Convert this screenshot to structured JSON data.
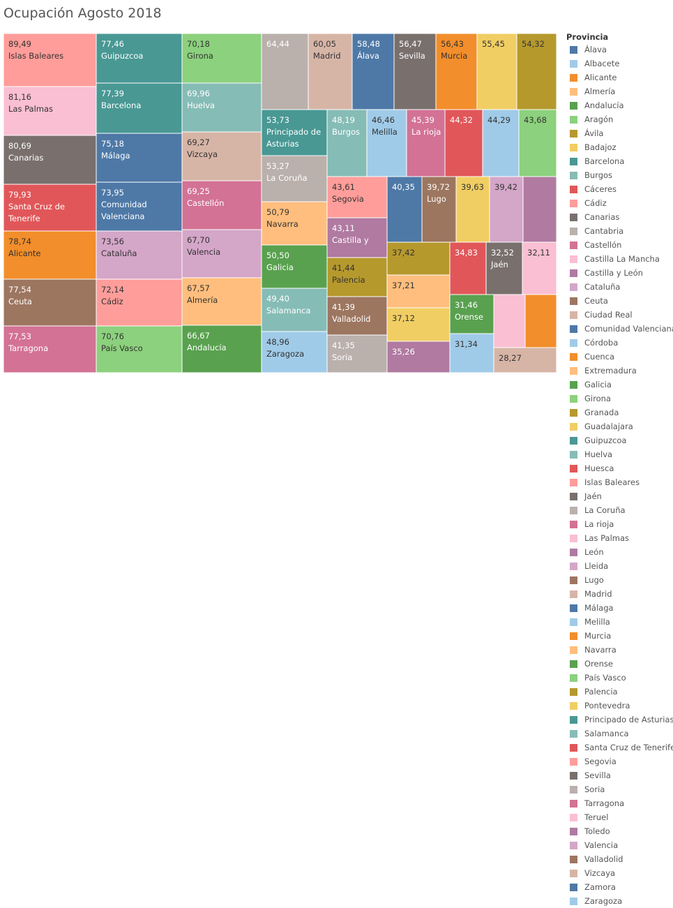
{
  "title": "Ocupación Agosto 2018",
  "legend": {
    "title": "Provincia",
    "items": [
      {
        "name": "Álava",
        "color": "#4E79A7"
      },
      {
        "name": "Albacete",
        "color": "#A0CBE8"
      },
      {
        "name": "Alicante",
        "color": "#F28E2B"
      },
      {
        "name": "Almería",
        "color": "#FFBE7D"
      },
      {
        "name": "Andalucía",
        "color": "#59A14F"
      },
      {
        "name": "Aragón",
        "color": "#8CD17D"
      },
      {
        "name": "Ávila",
        "color": "#B6992D"
      },
      {
        "name": "Badajoz",
        "color": "#F1CE63"
      },
      {
        "name": "Barcelona",
        "color": "#499894"
      },
      {
        "name": "Burgos",
        "color": "#86BCB6"
      },
      {
        "name": "Cáceres",
        "color": "#E15759"
      },
      {
        "name": "Cádiz",
        "color": "#FF9D9A"
      },
      {
        "name": "Canarias",
        "color": "#79706E"
      },
      {
        "name": "Cantabria",
        "color": "#BAB0AC"
      },
      {
        "name": "Castellón",
        "color": "#D37295"
      },
      {
        "name": "Castilla La Mancha",
        "color": "#FABFD2"
      },
      {
        "name": "Castilla y León",
        "color": "#B07AA1"
      },
      {
        "name": "Cataluña",
        "color": "#D4A6C8"
      },
      {
        "name": "Ceuta",
        "color": "#9D7660"
      },
      {
        "name": "Ciudad Real",
        "color": "#D7B5A6"
      },
      {
        "name": "Comunidad Valenciana",
        "color": "#4E79A7"
      },
      {
        "name": "Córdoba",
        "color": "#A0CBE8"
      },
      {
        "name": "Cuenca",
        "color": "#F28E2B"
      },
      {
        "name": "Extremadura",
        "color": "#FFBE7D"
      },
      {
        "name": "Galicia",
        "color": "#59A14F"
      },
      {
        "name": "Girona",
        "color": "#8CD17D"
      },
      {
        "name": "Granada",
        "color": "#B6992D"
      },
      {
        "name": "Guadalajara",
        "color": "#F1CE63"
      },
      {
        "name": "Guipuzcoa",
        "color": "#499894"
      },
      {
        "name": "Huelva",
        "color": "#86BCB6"
      },
      {
        "name": "Huesca",
        "color": "#E15759"
      },
      {
        "name": "Islas Baleares",
        "color": "#FF9D9A"
      },
      {
        "name": "Jaén",
        "color": "#79706E"
      },
      {
        "name": "La Coruña",
        "color": "#BAB0AC"
      },
      {
        "name": "La rioja",
        "color": "#D37295"
      },
      {
        "name": "Las Palmas",
        "color": "#FABFD2"
      },
      {
        "name": "León",
        "color": "#B07AA1"
      },
      {
        "name": "Lleida",
        "color": "#D4A6C8"
      },
      {
        "name": "Lugo",
        "color": "#9D7660"
      },
      {
        "name": "Madrid",
        "color": "#D7B5A6"
      },
      {
        "name": "Málaga",
        "color": "#4E79A7"
      },
      {
        "name": "Melilla",
        "color": "#A0CBE8"
      },
      {
        "name": "Murcia",
        "color": "#F28E2B"
      },
      {
        "name": "Navarra",
        "color": "#FFBE7D"
      },
      {
        "name": "Orense",
        "color": "#59A14F"
      },
      {
        "name": "País Vasco",
        "color": "#8CD17D"
      },
      {
        "name": "Palencia",
        "color": "#B6992D"
      },
      {
        "name": "Pontevedra",
        "color": "#F1CE63"
      },
      {
        "name": "Principado de Asturias",
        "color": "#499894"
      },
      {
        "name": "Salamanca",
        "color": "#86BCB6"
      },
      {
        "name": "Santa Cruz de Tenerife",
        "color": "#E15759"
      },
      {
        "name": "Segovia",
        "color": "#FF9D9A"
      },
      {
        "name": "Sevilla",
        "color": "#79706E"
      },
      {
        "name": "Soria",
        "color": "#BAB0AC"
      },
      {
        "name": "Tarragona",
        "color": "#D37295"
      },
      {
        "name": "Teruel",
        "color": "#FABFD2"
      },
      {
        "name": "Toledo",
        "color": "#B07AA1"
      },
      {
        "name": "Valencia",
        "color": "#D4A6C8"
      },
      {
        "name": "Valladolid",
        "color": "#9D7660"
      },
      {
        "name": "Vizcaya",
        "color": "#D7B5A6"
      },
      {
        "name": "Zamora",
        "color": "#4E79A7"
      },
      {
        "name": "Zaragoza",
        "color": "#A0CBE8"
      }
    ]
  },
  "chart_data": {
    "type": "treemap",
    "title": "Ocupación Agosto 2018",
    "legend_position": "right",
    "items": [
      {
        "name": "Islas Baleares",
        "value": 89.49,
        "value_label": "89,49",
        "label": "Islas Baleares"
      },
      {
        "name": "Las Palmas",
        "value": 81.16,
        "value_label": "81,16",
        "label": "Las Palmas"
      },
      {
        "name": "Canarias",
        "value": 80.69,
        "value_label": "80,69",
        "label": "Canarias"
      },
      {
        "name": "Santa Cruz de Tenerife",
        "value": 79.93,
        "value_label": "79,93",
        "label": "Santa Cruz de Tenerife"
      },
      {
        "name": "Alicante",
        "value": 78.74,
        "value_label": "78,74",
        "label": "Alicante"
      },
      {
        "name": "Ceuta",
        "value": 77.54,
        "value_label": "77,54",
        "label": "Ceuta"
      },
      {
        "name": "Tarragona",
        "value": 77.53,
        "value_label": "77,53",
        "label": "Tarragona"
      },
      {
        "name": "Guipuzcoa",
        "value": 77.46,
        "value_label": "77,46",
        "label": "Guipuzcoa"
      },
      {
        "name": "Barcelona",
        "value": 77.39,
        "value_label": "77,39",
        "label": "Barcelona"
      },
      {
        "name": "Málaga",
        "value": 75.18,
        "value_label": "75,18",
        "label": "Málaga"
      },
      {
        "name": "Comunidad Valenciana",
        "value": 73.95,
        "value_label": "73,95",
        "label": "Comunidad Valenciana"
      },
      {
        "name": "Cataluña",
        "value": 73.56,
        "value_label": "73,56",
        "label": "Cataluña"
      },
      {
        "name": "Cádiz",
        "value": 72.14,
        "value_label": "72,14",
        "label": "Cádiz"
      },
      {
        "name": "País Vasco",
        "value": 70.76,
        "value_label": "70,76",
        "label": "País Vasco"
      },
      {
        "name": "Girona",
        "value": 70.18,
        "value_label": "70,18",
        "label": "Girona"
      },
      {
        "name": "Huelva",
        "value": 69.96,
        "value_label": "69,96",
        "label": "Huelva"
      },
      {
        "name": "Vizcaya",
        "value": 69.27,
        "value_label": "69,27",
        "label": "Vizcaya"
      },
      {
        "name": "Castellón",
        "value": 69.25,
        "value_label": "69,25",
        "label": "Castellón"
      },
      {
        "name": "Valencia",
        "value": 67.7,
        "value_label": "67,70",
        "label": "Valencia"
      },
      {
        "name": "Almería",
        "value": 67.57,
        "value_label": "67,57",
        "label": "Almería"
      },
      {
        "name": "Andalucía",
        "value": 66.67,
        "value_label": "66,67",
        "label": "Andalucía"
      },
      {
        "name": "Cantabria",
        "value": 64.44,
        "value_label": "64,44",
        "label": ""
      },
      {
        "name": "Madrid",
        "value": 60.05,
        "value_label": "60,05",
        "label": "Madrid"
      },
      {
        "name": "Álava",
        "value": 58.48,
        "value_label": "58,48",
        "label": "Álava"
      },
      {
        "name": "Sevilla",
        "value": 56.47,
        "value_label": "56,47",
        "label": "Sevilla"
      },
      {
        "name": "Murcia",
        "value": 56.43,
        "value_label": "56,43",
        "label": "Murcia"
      },
      {
        "name": "Badajoz",
        "value": 55.45,
        "value_label": "55,45",
        "label": ""
      },
      {
        "name": "Ávila",
        "value": 54.32,
        "value_label": "54,32",
        "label": ""
      },
      {
        "name": "Principado de Asturias",
        "value": 53.73,
        "value_label": "53,73",
        "label": "Principado de Asturias"
      },
      {
        "name": "La Coruña",
        "value": 53.27,
        "value_label": "53,27",
        "label": "La Coruña"
      },
      {
        "name": "Navarra",
        "value": 50.79,
        "value_label": "50,79",
        "label": "Navarra"
      },
      {
        "name": "Galicia",
        "value": 50.5,
        "value_label": "50,50",
        "label": "Galicia"
      },
      {
        "name": "Salamanca",
        "value": 49.4,
        "value_label": "49,40",
        "label": "Salamanca"
      },
      {
        "name": "Zaragoza",
        "value": 48.96,
        "value_label": "48,96",
        "label": "Zaragoza"
      },
      {
        "name": "Burgos",
        "value": 48.19,
        "value_label": "48,19",
        "label": "Burgos"
      },
      {
        "name": "Melilla",
        "value": 46.46,
        "value_label": "46,46",
        "label": "Melilla"
      },
      {
        "name": "La rioja",
        "value": 45.39,
        "value_label": "45,39",
        "label": "La rioja"
      },
      {
        "name": "Cáceres",
        "value": 44.32,
        "value_label": "44,32",
        "label": ""
      },
      {
        "name": "Albacete",
        "value": 44.29,
        "value_label": "44,29",
        "label": ""
      },
      {
        "name": "Aragón",
        "value": 43.68,
        "value_label": "43,68",
        "label": ""
      },
      {
        "name": "Segovia",
        "value": 43.61,
        "value_label": "43,61",
        "label": "Segovia"
      },
      {
        "name": "Castilla y León",
        "value": 43.11,
        "value_label": "43,11",
        "label": "Castilla y"
      },
      {
        "name": "Palencia",
        "value": 41.44,
        "value_label": "41,44",
        "label": "Palencia"
      },
      {
        "name": "Valladolid",
        "value": 41.39,
        "value_label": "41,39",
        "label": "Valladolid"
      },
      {
        "name": "Soria",
        "value": 41.35,
        "value_label": "41,35",
        "label": "Soria"
      },
      {
        "name": "Zamora",
        "value": 40.35,
        "value_label": "40,35",
        "label": ""
      },
      {
        "name": "Lugo",
        "value": 39.72,
        "value_label": "39,72",
        "label": "Lugo"
      },
      {
        "name": "Guadalajara",
        "value": 39.63,
        "value_label": "39,63",
        "label": ""
      },
      {
        "name": "Lleida",
        "value": 39.42,
        "value_label": "39,42",
        "label": ""
      },
      {
        "name": "León",
        "value": null,
        "value_label": "",
        "label": ""
      },
      {
        "name": "Granada",
        "value": 37.42,
        "value_label": "37,42",
        "label": ""
      },
      {
        "name": "Extremadura",
        "value": 37.21,
        "value_label": "37,21",
        "label": ""
      },
      {
        "name": "Pontevedra",
        "value": 37.12,
        "value_label": "37,12",
        "label": ""
      },
      {
        "name": "Toledo",
        "value": 35.26,
        "value_label": "35,26",
        "label": ""
      },
      {
        "name": "Huesca",
        "value": 34.83,
        "value_label": "34,83",
        "label": ""
      },
      {
        "name": "Jaén",
        "value": 32.52,
        "value_label": "32,52",
        "label": "Jaén"
      },
      {
        "name": "Castilla La Mancha",
        "value": 32.11,
        "value_label": "32,11",
        "label": ""
      },
      {
        "name": "Orense",
        "value": 31.46,
        "value_label": "31,46",
        "label": "Orense"
      },
      {
        "name": "Córdoba",
        "value": 31.34,
        "value_label": "31,34",
        "label": ""
      },
      {
        "name": "Teruel",
        "value": null,
        "value_label": "",
        "label": ""
      },
      {
        "name": "Cuenca",
        "value": null,
        "value_label": "",
        "label": ""
      },
      {
        "name": "Ciudad Real",
        "value": 28.27,
        "value_label": "28,27",
        "label": ""
      }
    ]
  }
}
